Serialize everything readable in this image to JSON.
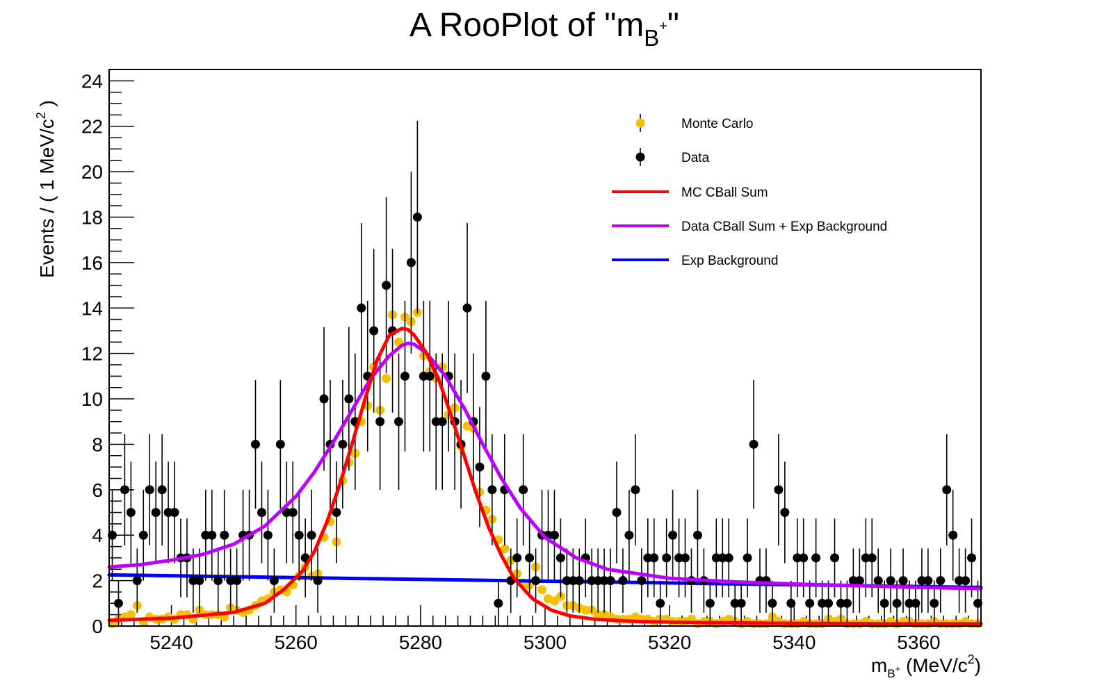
{
  "chart_data": {
    "type": "scatter",
    "title": {
      "main": "A RooPlot of \"m",
      "sub": "B",
      "sup": "+",
      "end": "\""
    },
    "xlabel": {
      "main": "m",
      "sub": "B",
      "sup": "+",
      "rest": " (MeV/c",
      "sup2": "2",
      "end": ")"
    },
    "ylabel": {
      "main": "Events / ( 1 MeV/c",
      "sup": "2",
      "end": " )"
    },
    "xlim": [
      5230,
      5370
    ],
    "ylim": [
      0,
      24.5
    ],
    "xticks": [
      5240,
      5260,
      5280,
      5300,
      5320,
      5340,
      5360
    ],
    "yticks": [
      0,
      2,
      4,
      6,
      8,
      10,
      12,
      14,
      16,
      18,
      20,
      22,
      24
    ],
    "legend_position": "top-right",
    "colors": {
      "mc": "#f5c000",
      "data": "#000000",
      "mc_fit": "#ff0000",
      "data_fit": "#bb00ff",
      "bkg": "#0000ff"
    },
    "legend": [
      "Monte Carlo",
      "Data",
      "MC CBall Sum",
      "Data CBall Sum + Exp Background",
      "Exp Background"
    ],
    "series": [
      {
        "name": "Data",
        "x": [
          5230.5,
          5231.5,
          5232.5,
          5233.5,
          5234.5,
          5235.5,
          5236.5,
          5237.5,
          5238.5,
          5239.5,
          5240.5,
          5241.5,
          5242.5,
          5243.5,
          5244.5,
          5245.5,
          5246.5,
          5247.5,
          5248.5,
          5249.5,
          5250.5,
          5251.5,
          5252.5,
          5253.5,
          5254.5,
          5255.5,
          5256.5,
          5257.5,
          5258.5,
          5259.5,
          5260.5,
          5261.5,
          5262.5,
          5263.5,
          5264.5,
          5265.5,
          5266.5,
          5267.5,
          5268.5,
          5269.5,
          5270.5,
          5271.5,
          5272.5,
          5273.5,
          5274.5,
          5275.5,
          5276.5,
          5277.5,
          5278.5,
          5279.5,
          5280.5,
          5281.5,
          5282.5,
          5283.5,
          5284.5,
          5285.5,
          5286.5,
          5287.5,
          5288.5,
          5289.5,
          5290.5,
          5291.5,
          5292.5,
          5293.5,
          5294.5,
          5295.5,
          5296.5,
          5297.5,
          5298.5,
          5299.5,
          5300.5,
          5301.5,
          5302.5,
          5303.5,
          5304.5,
          5305.5,
          5306.5,
          5307.5,
          5308.5,
          5309.5,
          5310.5,
          5311.5,
          5312.5,
          5313.5,
          5314.5,
          5315.5,
          5316.5,
          5317.5,
          5318.5,
          5319.5,
          5320.5,
          5321.5,
          5322.5,
          5323.5,
          5324.5,
          5325.5,
          5326.5,
          5327.5,
          5328.5,
          5329.5,
          5330.5,
          5331.5,
          5332.5,
          5333.5,
          5334.5,
          5335.5,
          5336.5,
          5337.5,
          5338.5,
          5339.5,
          5340.5,
          5341.5,
          5342.5,
          5343.5,
          5344.5,
          5345.5,
          5346.5,
          5347.5,
          5348.5,
          5349.5,
          5350.5,
          5351.5,
          5352.5,
          5353.5,
          5354.5,
          5355.5,
          5356.5,
          5357.5,
          5358.5,
          5359.5,
          5360.5,
          5361.5,
          5362.5,
          5363.5,
          5364.5,
          5365.5,
          5366.5,
          5367.5,
          5368.5,
          5369.5
        ],
        "y": [
          4,
          1,
          6,
          5,
          2,
          4,
          6,
          5,
          6,
          5,
          5,
          3,
          3,
          2,
          2,
          4,
          4,
          2,
          4,
          2,
          2,
          4,
          4,
          8,
          5,
          4,
          2,
          8,
          5,
          5,
          4,
          3,
          4,
          2,
          10,
          8,
          5,
          8,
          10,
          9,
          14,
          11,
          13,
          9,
          15,
          13,
          9,
          11,
          16,
          18,
          11,
          11,
          9,
          9,
          11,
          9,
          8,
          14,
          9,
          7,
          11,
          6,
          1,
          6,
          2,
          3,
          6,
          3,
          2,
          4,
          4,
          4,
          3,
          2,
          2,
          2,
          3,
          2,
          2,
          2,
          2,
          5,
          2,
          4,
          6,
          2,
          3,
          3,
          1,
          3,
          4,
          3,
          3,
          2,
          4,
          2,
          1,
          3,
          3,
          3,
          1,
          1,
          3,
          8,
          2,
          2,
          1,
          6,
          5,
          1,
          3,
          3,
          1,
          3,
          1,
          1,
          3,
          1,
          1,
          2,
          2,
          3,
          3,
          2,
          1,
          2,
          1,
          2,
          1,
          1,
          2,
          2,
          1,
          2,
          6,
          4,
          2,
          2,
          3,
          1
        ]
      },
      {
        "name": "Monte Carlo",
        "x": [
          5230.5,
          5231.5,
          5232.5,
          5233.5,
          5234.5,
          5235.5,
          5236.5,
          5237.5,
          5238.5,
          5239.5,
          5240.5,
          5241.5,
          5242.5,
          5243.5,
          5244.5,
          5245.5,
          5246.5,
          5247.5,
          5248.5,
          5249.5,
          5250.5,
          5251.5,
          5252.5,
          5253.5,
          5254.5,
          5255.5,
          5256.5,
          5257.5,
          5258.5,
          5259.5,
          5260.5,
          5261.5,
          5262.5,
          5263.5,
          5264.5,
          5265.5,
          5266.5,
          5267.5,
          5268.5,
          5269.5,
          5270.5,
          5271.5,
          5272.5,
          5273.5,
          5274.5,
          5275.5,
          5276.5,
          5277.5,
          5278.5,
          5279.5,
          5280.5,
          5281.5,
          5282.5,
          5283.5,
          5284.5,
          5285.5,
          5286.5,
          5287.5,
          5288.5,
          5289.5,
          5290.5,
          5291.5,
          5292.5,
          5293.5,
          5294.5,
          5295.5,
          5296.5,
          5297.5,
          5298.5,
          5299.5,
          5300.5,
          5301.5,
          5302.5,
          5303.5,
          5304.5,
          5305.5,
          5306.5,
          5307.5,
          5308.5,
          5309.5,
          5310.5,
          5311.5,
          5312.5,
          5313.5,
          5314.5,
          5315.5,
          5316.5,
          5317.5,
          5318.5,
          5319.5,
          5320.5,
          5321.5,
          5322.5,
          5323.5,
          5324.5,
          5325.5,
          5326.5,
          5327.5,
          5328.5,
          5329.5,
          5330.5,
          5331.5,
          5332.5,
          5333.5,
          5334.5,
          5335.5,
          5336.5,
          5337.5,
          5338.5,
          5339.5,
          5340.5,
          5341.5,
          5342.5,
          5343.5,
          5344.5,
          5345.5,
          5346.5,
          5347.5,
          5348.5,
          5349.5,
          5350.5,
          5351.5,
          5352.5,
          5353.5,
          5354.5,
          5355.5,
          5356.5,
          5357.5,
          5358.5,
          5359.5,
          5360.5,
          5361.5,
          5362.5,
          5363.5,
          5364.5,
          5365.5,
          5366.5,
          5367.5,
          5368.5,
          5369.5
        ],
        "y": [
          0.1,
          0.3,
          0.4,
          0.5,
          0.9,
          0.2,
          0.4,
          0.3,
          0.3,
          0.4,
          0.3,
          0.5,
          0.5,
          0.3,
          0.7,
          0.5,
          0.5,
          0.5,
          0.4,
          0.8,
          0.7,
          0.6,
          0.7,
          0.9,
          1.1,
          1.2,
          1.5,
          1.6,
          1.5,
          1.8,
          2.2,
          2.6,
          2.2,
          2.3,
          3.9,
          4.6,
          3.7,
          6.4,
          7.2,
          7.6,
          9.0,
          9.7,
          11.4,
          9.5,
          10.9,
          13.7,
          12.5,
          13.6,
          13.4,
          13.8,
          11.9,
          11.2,
          10.9,
          11.4,
          9.3,
          9.6,
          7.9,
          8.8,
          8.7,
          5.9,
          5.1,
          4.7,
          3.8,
          3.4,
          2.9,
          2.3,
          1.9,
          1.8,
          2.6,
          1.6,
          1.2,
          1.1,
          1.3,
          0.9,
          0.9,
          0.8,
          0.7,
          0.7,
          0.5,
          0.5,
          0.4,
          0.3,
          0.3,
          0.3,
          0.4,
          0.3,
          0.3,
          0.2,
          0.3,
          0.3,
          0.2,
          0.2,
          0.2,
          0.3,
          0.1,
          0.2,
          0.2,
          0.1,
          0.2,
          0.3,
          0.2,
          0.1,
          0.2,
          0.1,
          0.1,
          0.1,
          0.4,
          0.2,
          0.1,
          0.1,
          0.1,
          0.2,
          0.1,
          0.1,
          0.1,
          0.3,
          0.2,
          0.3,
          0.1,
          0.1,
          0.1,
          0.2,
          0.1,
          0.1,
          0.1,
          0.2,
          0.1,
          0.2,
          0.2,
          0.1,
          0.1,
          0.1,
          0.2,
          0.1,
          0.1,
          0.1,
          0.1,
          0.2,
          0.1,
          0.1
        ]
      },
      {
        "name": "MC CBall Sum",
        "x": [
          5230,
          5240,
          5250,
          5255,
          5258,
          5261,
          5263,
          5265,
          5267,
          5269,
          5271,
          5273,
          5275,
          5277,
          5278,
          5279,
          5281,
          5283,
          5285,
          5287,
          5289,
          5291,
          5293,
          5295,
          5298,
          5301,
          5304,
          5308,
          5315,
          5325,
          5340,
          5355,
          5370
        ],
        "y": [
          0.25,
          0.35,
          0.6,
          1.0,
          1.6,
          2.4,
          3.3,
          4.6,
          6.2,
          8.0,
          9.9,
          11.7,
          12.8,
          13.1,
          13.05,
          12.8,
          12.0,
          10.8,
          9.2,
          7.5,
          5.8,
          4.3,
          3.1,
          2.1,
          1.2,
          0.7,
          0.45,
          0.3,
          0.2,
          0.15,
          0.12,
          0.1,
          0.1
        ]
      },
      {
        "name": "Data CBall Sum + Exp Background",
        "x": [
          5230,
          5235,
          5240,
          5245,
          5250,
          5255,
          5260,
          5263,
          5266,
          5269,
          5272,
          5275,
          5277,
          5278,
          5279,
          5281,
          5284,
          5287,
          5290,
          5293,
          5296,
          5300,
          5305,
          5310,
          5320,
          5330,
          5340,
          5350,
          5360,
          5370
        ],
        "y": [
          2.6,
          2.7,
          2.9,
          3.15,
          3.6,
          4.4,
          5.7,
          6.8,
          8.1,
          9.5,
          10.9,
          11.9,
          12.35,
          12.45,
          12.4,
          12.0,
          11.0,
          9.6,
          8.0,
          6.5,
          5.2,
          3.9,
          3.0,
          2.5,
          2.1,
          1.95,
          1.85,
          1.78,
          1.7,
          1.65
        ]
      },
      {
        "name": "Exp Background",
        "x": [
          5230,
          5370
        ],
        "y": [
          2.25,
          1.7
        ]
      }
    ]
  }
}
